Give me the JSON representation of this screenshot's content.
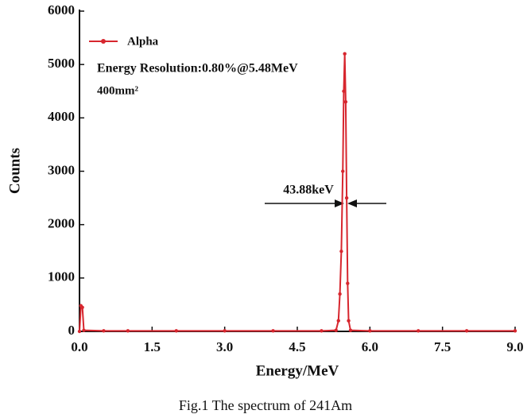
{
  "chart_data": {
    "type": "line",
    "title": "Fig.1 The spectrum of 241Am",
    "xlabel": "Energy/MeV",
    "ylabel": "Counts",
    "annotations": [
      "Energy Resolution:0.80%@5.48MeV",
      "400mm²",
      "43.88keV"
    ],
    "x": [
      0,
      0.03,
      0.06,
      0.09,
      0.5,
      1,
      2,
      3,
      4,
      5,
      5.3,
      5.35,
      5.38,
      5.41,
      5.44,
      5.46,
      5.48,
      5.5,
      5.52,
      5.54,
      5.56,
      5.6,
      6,
      7,
      8,
      9
    ],
    "series": [
      {
        "name": "Alpha",
        "color": "#d7262e",
        "values": [
          0,
          480,
          450,
          20,
          10,
          10,
          10,
          10,
          10,
          10,
          20,
          200,
          700,
          1500,
          3000,
          4500,
          5200,
          4300,
          2500,
          900,
          200,
          20,
          10,
          10,
          10,
          10
        ]
      }
    ],
    "xlim": [
      0,
      9
    ],
    "ylim": [
      0,
      6000
    ],
    "xticks": [
      {
        "value": 0,
        "label": "0.0"
      },
      1.5,
      {
        "value": 3,
        "label": "3.0"
      },
      4.5,
      {
        "value": 6,
        "label": "6.0"
      },
      7.5,
      {
        "value": 9,
        "label": "9.0"
      }
    ],
    "yticks": [
      0,
      1000,
      2000,
      3000,
      4000,
      5000,
      6000
    ]
  }
}
